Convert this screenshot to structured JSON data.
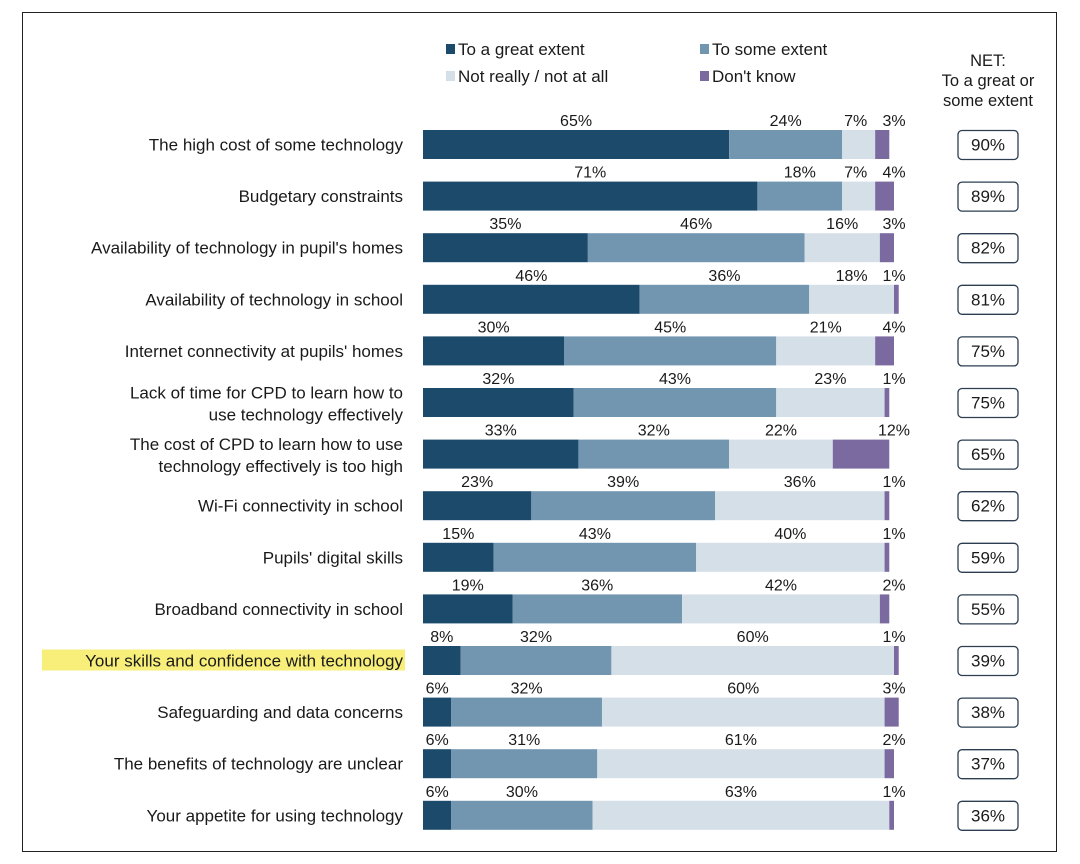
{
  "chart_data": {
    "type": "bar",
    "orientation": "horizontal",
    "stacked": true,
    "xlim": [
      0,
      100
    ],
    "legend_position": "top",
    "net_header": [
      "NET:",
      "To a great or",
      "some extent"
    ],
    "categories": [
      [
        "The high cost of some technology"
      ],
      [
        "Budgetary constraints"
      ],
      [
        "Availability of technology in pupil's homes"
      ],
      [
        "Availability of technology in school"
      ],
      [
        "Internet connectivity at pupils' homes"
      ],
      [
        "Lack of time for CPD to learn how to",
        "use technology effectively"
      ],
      [
        "The cost of CPD to learn how to use",
        "technology effectively is too high"
      ],
      [
        "Wi-Fi connectivity in school"
      ],
      [
        "Pupils' digital skills"
      ],
      [
        "Broadband connectivity in school"
      ],
      [
        "Your skills and confidence with technology"
      ],
      [
        "Safeguarding and data concerns"
      ],
      [
        "The benefits of technology are unclear"
      ],
      [
        "Your appetite for using technology"
      ]
    ],
    "highlighted_category_index": 10,
    "series": [
      {
        "name": "To a great extent",
        "color": "#1b4a6b",
        "values": [
          65,
          71,
          35,
          46,
          30,
          32,
          33,
          23,
          15,
          19,
          8,
          6,
          6,
          6
        ]
      },
      {
        "name": "To some extent",
        "color": "#7396b0",
        "values": [
          24,
          18,
          46,
          36,
          45,
          43,
          32,
          39,
          43,
          36,
          32,
          32,
          31,
          30
        ]
      },
      {
        "name": "Not really / not at all",
        "color": "#d4dfe8",
        "values": [
          7,
          7,
          16,
          18,
          21,
          23,
          22,
          36,
          40,
          42,
          60,
          60,
          61,
          63
        ]
      },
      {
        "name": "Don't know",
        "color": "#7b6aa0",
        "values": [
          3,
          4,
          3,
          1,
          4,
          1,
          12,
          1,
          1,
          2,
          1,
          3,
          2,
          1
        ]
      }
    ],
    "net_values": [
      90,
      89,
      82,
      81,
      75,
      75,
      65,
      62,
      59,
      55,
      39,
      38,
      37,
      36
    ],
    "highlight_color": "#f7ef7a"
  }
}
